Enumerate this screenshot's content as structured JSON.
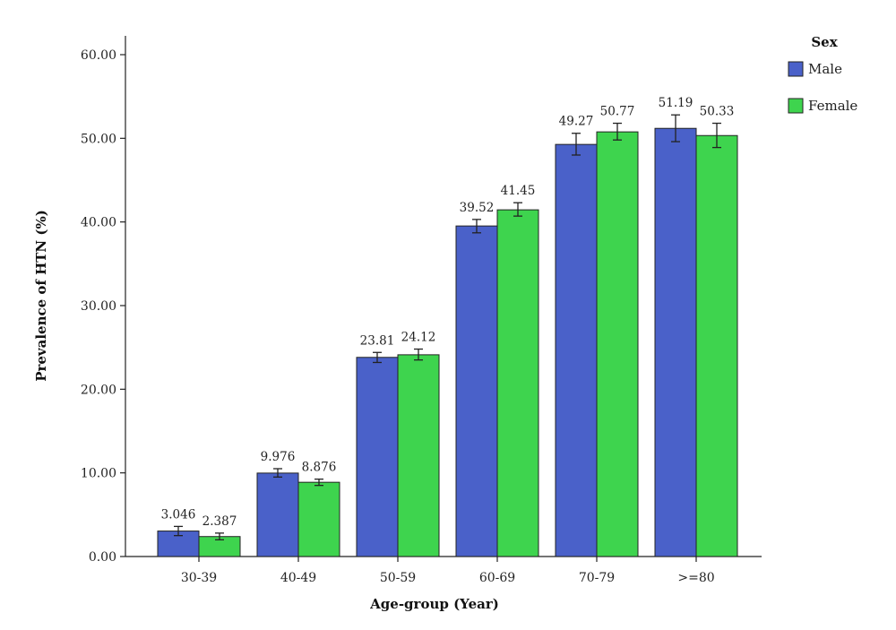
{
  "chart_data": {
    "type": "bar",
    "categories": [
      "30-39",
      "40-49",
      "50-59",
      "60-69",
      "70-79",
      ">=80"
    ],
    "series": [
      {
        "name": "Male",
        "values": [
          3.046,
          9.976,
          23.81,
          39.52,
          49.27,
          51.19
        ],
        "value_labels": [
          "3.046",
          "9.976",
          "23.81",
          "39.52",
          "49.27",
          "51.19"
        ],
        "error_low": [
          2.5,
          9.5,
          23.2,
          38.7,
          48.0,
          49.6
        ],
        "error_high": [
          3.6,
          10.5,
          24.4,
          40.3,
          50.6,
          52.8
        ]
      },
      {
        "name": "Female",
        "values": [
          2.387,
          8.876,
          24.12,
          41.45,
          50.77,
          50.33
        ],
        "value_labels": [
          "2.387",
          "8.876",
          "24.12",
          "41.45",
          "50.77",
          "50.33"
        ],
        "error_low": [
          2.0,
          8.5,
          23.5,
          40.7,
          49.8,
          48.9
        ],
        "error_high": [
          2.8,
          9.25,
          24.8,
          42.3,
          51.8,
          51.8
        ]
      }
    ],
    "title": "",
    "xlabel": "Age-group (Year)",
    "ylabel": "Prevalence of HTN (%)",
    "ylim": [
      0,
      60
    ],
    "yticks": [
      0,
      10,
      20,
      30,
      40,
      50,
      60
    ],
    "ytick_labels": [
      "0.00",
      "10.00",
      "20.00",
      "30.00",
      "40.00",
      "50.00",
      "60.00"
    ],
    "grid": false,
    "legend": {
      "title": "Sex",
      "placement": "top-right",
      "entries": [
        "Male",
        "Female"
      ]
    },
    "colors": {
      "Male": "#4a61c9",
      "Female": "#3ed44e",
      "stroke": "#222222"
    }
  }
}
